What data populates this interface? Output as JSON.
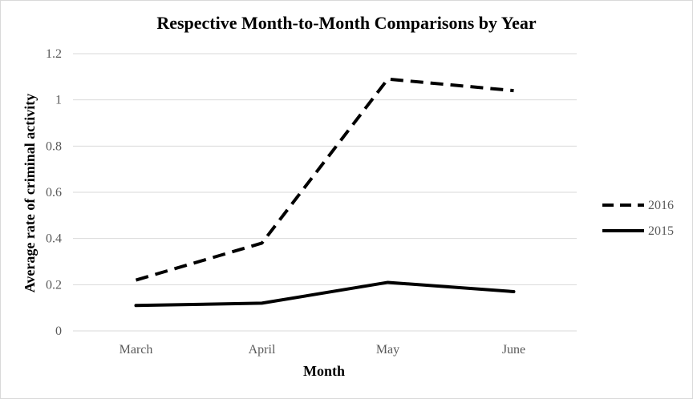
{
  "chart_data": {
    "type": "line",
    "title": "Respective Month-to-Month Comparisons by Year",
    "xlabel": "Month",
    "ylabel": "Average rate of criminal activity",
    "categories": [
      "March",
      "April",
      "May",
      "June"
    ],
    "ylim": [
      0,
      1.2
    ],
    "yticks": [
      "0",
      "0.2",
      "0.4",
      "0.6",
      "0.8",
      "1",
      "1.2"
    ],
    "grid": true,
    "legend_position": "right",
    "series": [
      {
        "name": "2016",
        "values": [
          0.22,
          0.38,
          1.09,
          1.04
        ],
        "color": "#000000",
        "line_style": "dashed"
      },
      {
        "name": "2015",
        "values": [
          0.11,
          0.12,
          0.21,
          0.17
        ],
        "color": "#000000",
        "line_style": "solid"
      }
    ]
  }
}
